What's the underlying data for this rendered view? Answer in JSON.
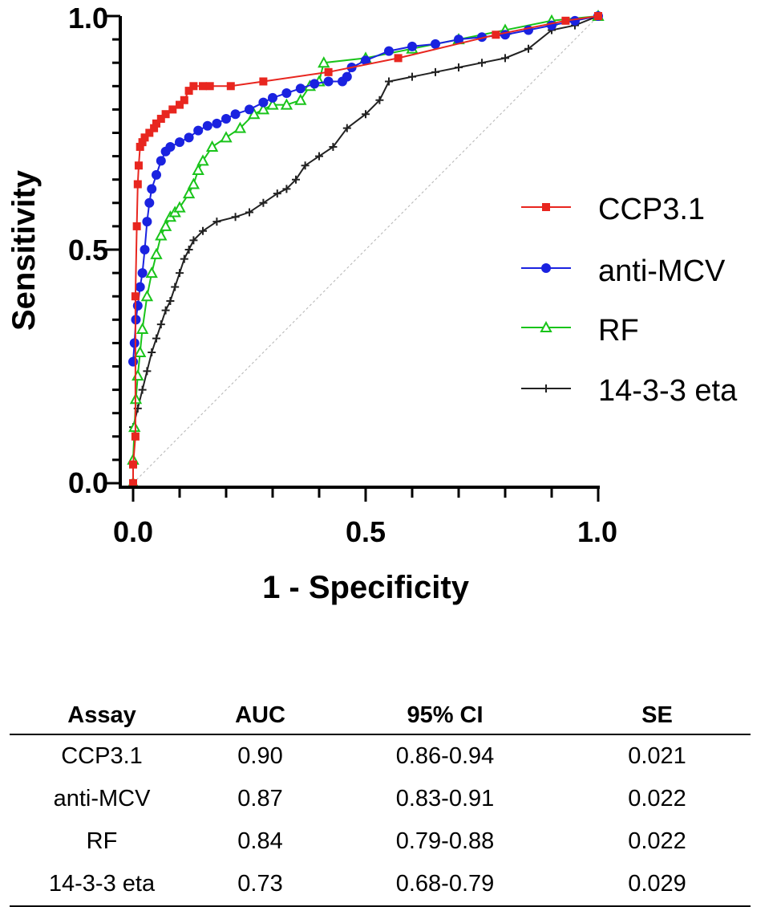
{
  "chart_data": {
    "type": "line",
    "xlabel": "1 - Specificity",
    "ylabel": "Sensitivity",
    "xlim": [
      0,
      1
    ],
    "ylim": [
      0,
      1
    ],
    "x_ticks": [
      "0.0",
      "0.5",
      "1.0"
    ],
    "y_ticks": [
      "0.0",
      "0.5",
      "1.0"
    ],
    "reference_line": [
      [
        0,
        0
      ],
      [
        1,
        1
      ]
    ],
    "legend_position": "right",
    "series": [
      {
        "name": "CCP3.1",
        "color": "#e8261f",
        "marker": "square",
        "points": [
          [
            0,
            0
          ],
          [
            0,
            0.04
          ],
          [
            0.005,
            0.1
          ],
          [
            0.005,
            0.4
          ],
          [
            0.008,
            0.55
          ],
          [
            0.01,
            0.64
          ],
          [
            0.012,
            0.68
          ],
          [
            0.015,
            0.72
          ],
          [
            0.02,
            0.73
          ],
          [
            0.025,
            0.74
          ],
          [
            0.035,
            0.75
          ],
          [
            0.045,
            0.76
          ],
          [
            0.05,
            0.77
          ],
          [
            0.06,
            0.78
          ],
          [
            0.07,
            0.79
          ],
          [
            0.085,
            0.8
          ],
          [
            0.1,
            0.81
          ],
          [
            0.11,
            0.82
          ],
          [
            0.12,
            0.84
          ],
          [
            0.13,
            0.85
          ],
          [
            0.15,
            0.85
          ],
          [
            0.165,
            0.85
          ],
          [
            0.21,
            0.85
          ],
          [
            0.28,
            0.86
          ],
          [
            0.42,
            0.88
          ],
          [
            0.57,
            0.91
          ],
          [
            0.78,
            0.96
          ],
          [
            0.93,
            0.99
          ],
          [
            1,
            1
          ]
        ]
      },
      {
        "name": "anti-MCV",
        "color": "#1a22e0",
        "marker": "circle",
        "points": [
          [
            0,
            0.26
          ],
          [
            0.003,
            0.3
          ],
          [
            0.006,
            0.35
          ],
          [
            0.01,
            0.38
          ],
          [
            0.015,
            0.42
          ],
          [
            0.02,
            0.45
          ],
          [
            0.025,
            0.5
          ],
          [
            0.03,
            0.56
          ],
          [
            0.035,
            0.6
          ],
          [
            0.04,
            0.63
          ],
          [
            0.05,
            0.66
          ],
          [
            0.06,
            0.69
          ],
          [
            0.07,
            0.71
          ],
          [
            0.08,
            0.72
          ],
          [
            0.1,
            0.73
          ],
          [
            0.12,
            0.74
          ],
          [
            0.14,
            0.755
          ],
          [
            0.16,
            0.765
          ],
          [
            0.18,
            0.77
          ],
          [
            0.2,
            0.78
          ],
          [
            0.22,
            0.79
          ],
          [
            0.25,
            0.8
          ],
          [
            0.28,
            0.815
          ],
          [
            0.3,
            0.825
          ],
          [
            0.33,
            0.835
          ],
          [
            0.36,
            0.845
          ],
          [
            0.39,
            0.855
          ],
          [
            0.42,
            0.86
          ],
          [
            0.45,
            0.86
          ],
          [
            0.46,
            0.87
          ],
          [
            0.47,
            0.89
          ],
          [
            0.5,
            0.905
          ],
          [
            0.55,
            0.925
          ],
          [
            0.6,
            0.935
          ],
          [
            0.65,
            0.94
          ],
          [
            0.7,
            0.95
          ],
          [
            0.75,
            0.955
          ],
          [
            0.8,
            0.96
          ],
          [
            0.85,
            0.97
          ],
          [
            0.9,
            0.98
          ],
          [
            0.95,
            0.99
          ],
          [
            1,
            1
          ]
        ]
      },
      {
        "name": "RF",
        "color": "#19c41a",
        "marker": "triangle",
        "points": [
          [
            0,
            0
          ],
          [
            0,
            0.05
          ],
          [
            0.003,
            0.12
          ],
          [
            0.006,
            0.18
          ],
          [
            0.01,
            0.23
          ],
          [
            0.015,
            0.28
          ],
          [
            0.02,
            0.33
          ],
          [
            0.03,
            0.4
          ],
          [
            0.04,
            0.45
          ],
          [
            0.05,
            0.49
          ],
          [
            0.06,
            0.53
          ],
          [
            0.07,
            0.55
          ],
          [
            0.08,
            0.57
          ],
          [
            0.09,
            0.58
          ],
          [
            0.1,
            0.59
          ],
          [
            0.12,
            0.62
          ],
          [
            0.13,
            0.64
          ],
          [
            0.14,
            0.67
          ],
          [
            0.15,
            0.69
          ],
          [
            0.17,
            0.72
          ],
          [
            0.2,
            0.74
          ],
          [
            0.23,
            0.76
          ],
          [
            0.26,
            0.79
          ],
          [
            0.28,
            0.8
          ],
          [
            0.3,
            0.81
          ],
          [
            0.33,
            0.81
          ],
          [
            0.36,
            0.82
          ],
          [
            0.38,
            0.85
          ],
          [
            0.4,
            0.86
          ],
          [
            0.41,
            0.9
          ],
          [
            0.5,
            0.91
          ],
          [
            0.6,
            0.93
          ],
          [
            0.7,
            0.95
          ],
          [
            0.8,
            0.97
          ],
          [
            0.9,
            0.99
          ],
          [
            1,
            1
          ]
        ]
      },
      {
        "name": "14-3-3 eta",
        "color": "#222222",
        "marker": "plus",
        "points": [
          [
            0,
            0.12
          ],
          [
            0.01,
            0.16
          ],
          [
            0.02,
            0.2
          ],
          [
            0.03,
            0.24
          ],
          [
            0.04,
            0.28
          ],
          [
            0.05,
            0.31
          ],
          [
            0.06,
            0.34
          ],
          [
            0.07,
            0.37
          ],
          [
            0.08,
            0.39
          ],
          [
            0.09,
            0.42
          ],
          [
            0.1,
            0.45
          ],
          [
            0.11,
            0.48
          ],
          [
            0.12,
            0.5
          ],
          [
            0.13,
            0.52
          ],
          [
            0.15,
            0.54
          ],
          [
            0.18,
            0.56
          ],
          [
            0.22,
            0.57
          ],
          [
            0.25,
            0.58
          ],
          [
            0.28,
            0.6
          ],
          [
            0.31,
            0.62
          ],
          [
            0.33,
            0.63
          ],
          [
            0.35,
            0.65
          ],
          [
            0.37,
            0.68
          ],
          [
            0.4,
            0.7
          ],
          [
            0.43,
            0.72
          ],
          [
            0.46,
            0.76
          ],
          [
            0.5,
            0.79
          ],
          [
            0.53,
            0.82
          ],
          [
            0.55,
            0.86
          ],
          [
            0.6,
            0.87
          ],
          [
            0.65,
            0.88
          ],
          [
            0.7,
            0.89
          ],
          [
            0.75,
            0.9
          ],
          [
            0.8,
            0.91
          ],
          [
            0.85,
            0.93
          ],
          [
            0.9,
            0.97
          ],
          [
            0.95,
            0.98
          ],
          [
            1,
            1
          ]
        ]
      }
    ]
  },
  "table": {
    "headers": [
      "Assay",
      "AUC",
      "95% CI",
      "SE"
    ],
    "rows": [
      [
        "CCP3.1",
        "0.90",
        "0.86-0.94",
        "0.021"
      ],
      [
        "anti-MCV",
        "0.87",
        "0.83-0.91",
        "0.022"
      ],
      [
        "RF",
        "0.84",
        "0.79-0.88",
        "0.022"
      ],
      [
        "14-3-3 eta",
        "0.73",
        "0.68-0.79",
        "0.029"
      ]
    ]
  }
}
